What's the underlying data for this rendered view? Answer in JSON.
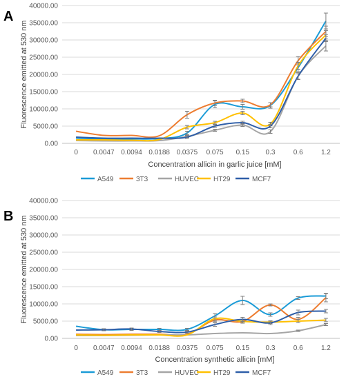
{
  "chart_data": [
    {
      "panel_label": "A",
      "type": "line",
      "title": "",
      "xlabel": "Concentration allicin in garlic juice [mM]",
      "ylabel": "Fluorescence emitted at 530 nm",
      "categories": [
        "0",
        "0.0047",
        "0.0094",
        "0.0188",
        "0.0375",
        "0.075",
        "0.15",
        "0.3",
        "0.6",
        "1.2"
      ],
      "ylim": [
        0,
        40000
      ],
      "yticks": [
        "0.00",
        "5000.00",
        "10000.00",
        "15000.00",
        "20000.00",
        "25000.00",
        "30000.00",
        "35000.00",
        "40000.00"
      ],
      "grid": true,
      "legend_position": "bottom",
      "series": [
        {
          "name": "A549",
          "color": "#1a9bd7",
          "values": [
            1500,
            1300,
            1300,
            1400,
            3000,
            11300,
            10600,
            11000,
            22000,
            35500
          ],
          "err": [
            0,
            0,
            0,
            0,
            500,
            1000,
            700,
            800,
            1200,
            2300
          ]
        },
        {
          "name": "3T3",
          "color": "#ed7d31",
          "values": [
            3500,
            2300,
            2300,
            2200,
            8300,
            11700,
            12300,
            11200,
            24000,
            32500
          ],
          "err": [
            0,
            0,
            0,
            0,
            1000,
            800,
            500,
            600,
            1200,
            1500
          ]
        },
        {
          "name": "HUVEC",
          "color": "#a5a5a5",
          "values": [
            800,
            700,
            700,
            800,
            2000,
            3800,
            5300,
            3400,
            19500,
            28300
          ],
          "err": [
            0,
            0,
            0,
            0,
            300,
            300,
            400,
            500,
            1000,
            1500
          ]
        },
        {
          "name": "HT29",
          "color": "#ffc000",
          "values": [
            1000,
            1000,
            900,
            1100,
            4700,
            6000,
            8800,
            5600,
            22500,
            31500
          ],
          "err": [
            0,
            0,
            0,
            0,
            500,
            400,
            500,
            500,
            1000,
            1200
          ]
        },
        {
          "name": "MCF7",
          "color": "#2e5ea8",
          "values": [
            1800,
            1500,
            1500,
            1500,
            1800,
            5000,
            6000,
            5000,
            19500,
            30500
          ],
          "err": [
            0,
            0,
            0,
            0,
            400,
            400,
            400,
            500,
            900,
            1000
          ]
        }
      ]
    },
    {
      "panel_label": "B",
      "type": "line",
      "title": "",
      "xlabel": "Concentration synthetic allicin [mM]",
      "ylabel": "Fluorescence emitted at 530 nm",
      "categories": [
        "0",
        "0.0047",
        "0.0094",
        "0.0188",
        "0.0375",
        "0.075",
        "0.15",
        "0.3",
        "0.6",
        "1.2"
      ],
      "ylim": [
        0,
        40000
      ],
      "yticks": [
        "0.00",
        "5000.00",
        "10000.00",
        "15000.00",
        "20000.00",
        "25000.00",
        "30000.00",
        "35000.00",
        "40000.00"
      ],
      "grid": true,
      "legend_position": "bottom",
      "series": [
        {
          "name": "A549",
          "color": "#1a9bd7",
          "values": [
            3500,
            2500,
            2600,
            2600,
            2600,
            6500,
            11000,
            6900,
            11700,
            12300
          ],
          "err": [
            0,
            300,
            300,
            300,
            300,
            700,
            1200,
            500,
            400,
            800
          ]
        },
        {
          "name": "3T3",
          "color": "#ed7d31",
          "values": [
            1200,
            1100,
            1200,
            1200,
            1200,
            5300,
            4900,
            9700,
            5500,
            11800
          ],
          "err": [
            0,
            0,
            0,
            0,
            0,
            500,
            500,
            300,
            600,
            1200
          ]
        },
        {
          "name": "HUVEC",
          "color": "#a5a5a5",
          "values": [
            800,
            800,
            900,
            1000,
            1000,
            1400,
            1600,
            1400,
            2200,
            4000
          ],
          "err": [
            0,
            0,
            0,
            0,
            0,
            0,
            0,
            0,
            200,
            300
          ]
        },
        {
          "name": "HT29",
          "color": "#ffc000",
          "values": [
            1000,
            900,
            1000,
            1000,
            1000,
            5700,
            4900,
            4700,
            5000,
            5300
          ],
          "err": [
            0,
            0,
            0,
            0,
            0,
            500,
            400,
            400,
            500,
            500
          ]
        },
        {
          "name": "MCF7",
          "color": "#2e5ea8",
          "values": [
            2400,
            2500,
            2700,
            2000,
            1800,
            4000,
            5500,
            4500,
            7500,
            7900
          ],
          "err": [
            0,
            300,
            300,
            300,
            300,
            500,
            600,
            500,
            700,
            500
          ]
        }
      ]
    }
  ]
}
